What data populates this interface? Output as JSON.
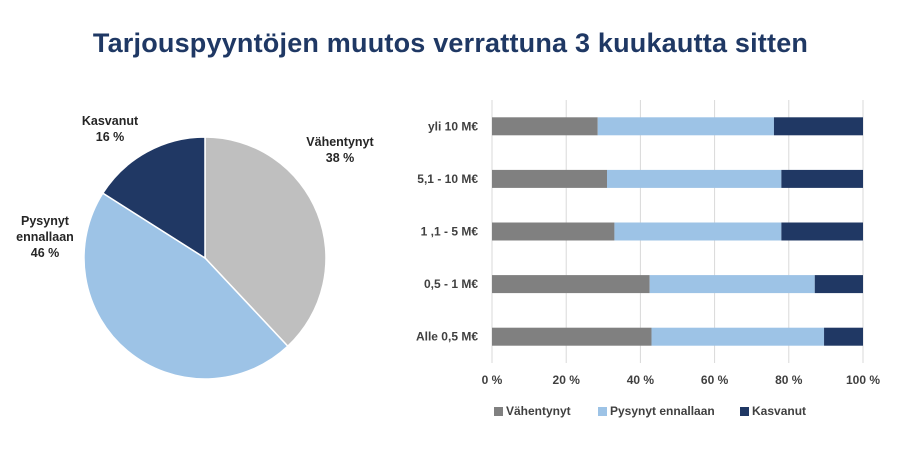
{
  "title": "Tarjouspyyntöjen muutos verrattuna 3 kuukautta sitten",
  "colors": {
    "title": "#1f3864",
    "pie_vahentynyt": "#bfbfbf",
    "pie_pysynyt": "#9dc3e6",
    "pie_kasvanut": "#203864",
    "bar_vahentynyt": "#808080",
    "bar_pysynyt": "#9dc3e6",
    "bar_kasvanut": "#203864"
  },
  "chart_data": [
    {
      "type": "pie",
      "slices": [
        {
          "label_lines": [
            "Vähentynyt"
          ],
          "value": 38,
          "value_text": "38 %",
          "color": "#bfbfbf"
        },
        {
          "label_lines": [
            "Pysynyt",
            "ennallaan"
          ],
          "value": 46,
          "value_text": "46 %",
          "color": "#9dc3e6"
        },
        {
          "label_lines": [
            "Kasvanut"
          ],
          "value": 16,
          "value_text": "16 %",
          "color": "#203864"
        }
      ]
    },
    {
      "type": "bar",
      "orientation": "horizontal",
      "stacked": true,
      "percent": true,
      "categories": [
        "yli 10 M€",
        "5,1 - 10 M€",
        "1 ,1 - 5 M€",
        "0,5 - 1 M€",
        "Alle 0,5 M€"
      ],
      "series": [
        {
          "name": "Vähentynyt",
          "color": "#808080",
          "values": [
            28.5,
            31,
            33,
            42.5,
            43
          ]
        },
        {
          "name": "Pysynyt ennallaan",
          "color": "#9dc3e6",
          "values": [
            47.5,
            47,
            45,
            44.5,
            46.5
          ]
        },
        {
          "name": "Kasvanut",
          "color": "#203864",
          "values": [
            24,
            22,
            22,
            13,
            10.5
          ]
        }
      ],
      "xticks": [
        "0 %",
        "20 %",
        "40 %",
        "60 %",
        "80 %",
        "100 %"
      ],
      "xlim": [
        0,
        100
      ],
      "grid": true,
      "legend": "bottom"
    }
  ]
}
